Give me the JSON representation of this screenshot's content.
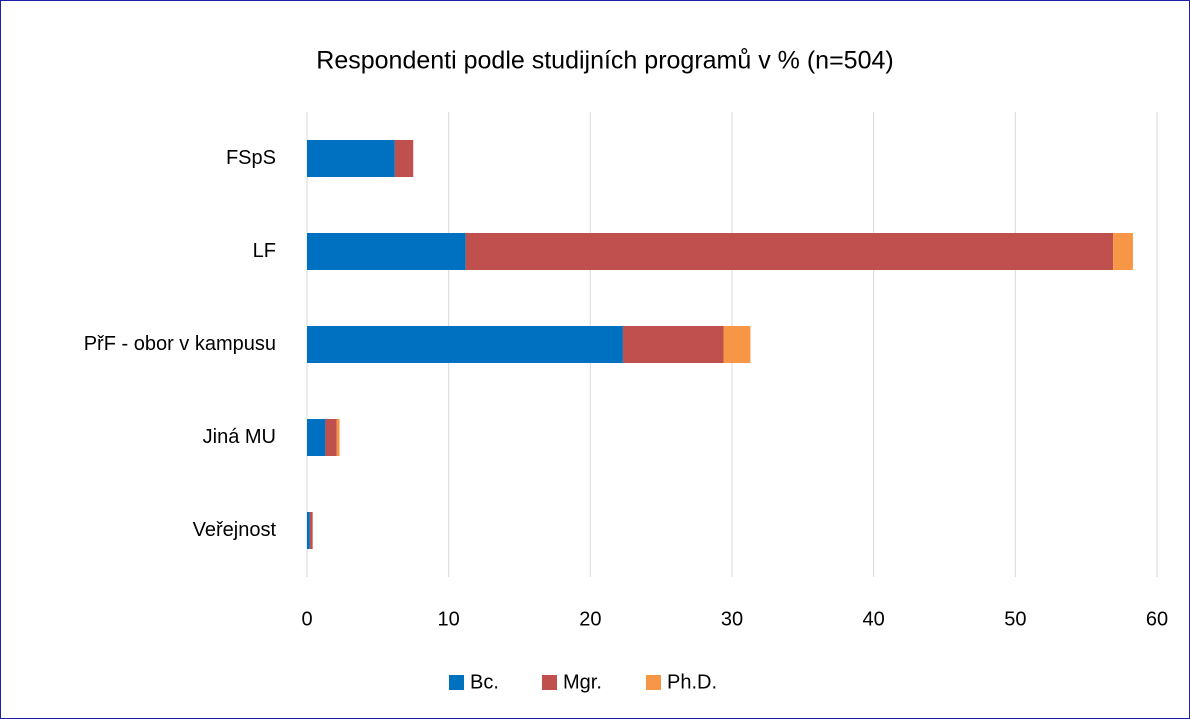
{
  "chart_data": {
    "type": "stacked-bar-horizontal",
    "title": "Respondenti podle studijních programů v % (n=504)",
    "categories": [
      "FSpS",
      "LF",
      "PřF - obor v kampusu",
      "Jiná MU",
      "Veřejnost"
    ],
    "series": [
      {
        "name": "Bc.",
        "color": "#0070c0",
        "values": [
          6.2,
          11.2,
          22.3,
          1.3,
          0.2
        ]
      },
      {
        "name": "Mgr.",
        "color": "#c0504d",
        "values": [
          1.3,
          45.7,
          7.1,
          0.8,
          0.2
        ]
      },
      {
        "name": "Ph.D.",
        "color": "#f79646",
        "values": [
          0,
          1.4,
          1.9,
          0.2,
          0
        ]
      }
    ],
    "xlim": [
      0,
      60
    ],
    "xticks": [
      0,
      10,
      20,
      30,
      40,
      50,
      60
    ],
    "grid": true,
    "legend": "bottom"
  }
}
